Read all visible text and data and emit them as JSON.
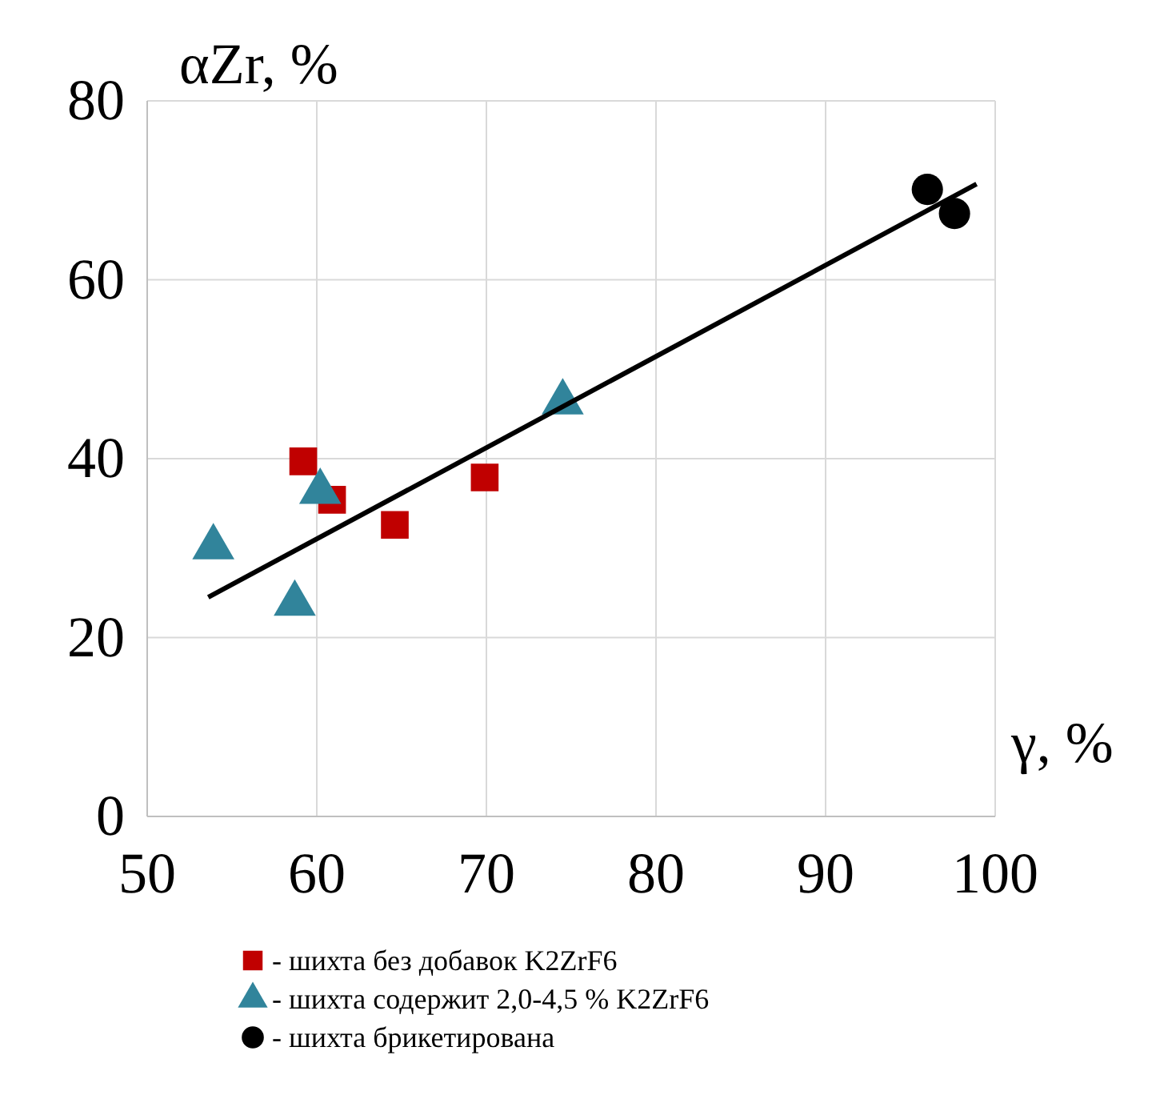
{
  "chart_data": {
    "type": "scatter",
    "ylabel": "αZr, %",
    "xlabel": "γ, %",
    "xlim": [
      50,
      100
    ],
    "ylim": [
      0,
      80
    ],
    "xticks": [
      50,
      60,
      70,
      80,
      90,
      100
    ],
    "yticks": [
      0,
      20,
      40,
      60,
      80
    ],
    "grid": true,
    "legend": "bottom",
    "series": [
      {
        "name": "- шихта без добавок K2ZrF6",
        "color": "#c00000",
        "marker": "square",
        "x": [
          59.2,
          60.9,
          64.6,
          69.9
        ],
        "values": [
          39.7,
          35.4,
          32.6,
          37.9
        ]
      },
      {
        "name": "- шихта содержит 2,0-4,5 % K2ZrF6",
        "color": "#31849b",
        "marker": "triangle",
        "x": [
          53.9,
          58.7,
          60.2,
          74.5
        ],
        "values": [
          30.1,
          23.8,
          36.3,
          46.3
        ]
      },
      {
        "name": "- шихта брикетирована",
        "color": "#000000",
        "marker": "circle",
        "x": [
          96.0,
          97.6
        ],
        "values": [
          70.1,
          67.4
        ]
      },
      {
        "type": "line",
        "color": "#000000",
        "marker": "none",
        "x": [
          53.6,
          98.9
        ],
        "values": [
          24.5,
          70.7
        ]
      }
    ]
  }
}
